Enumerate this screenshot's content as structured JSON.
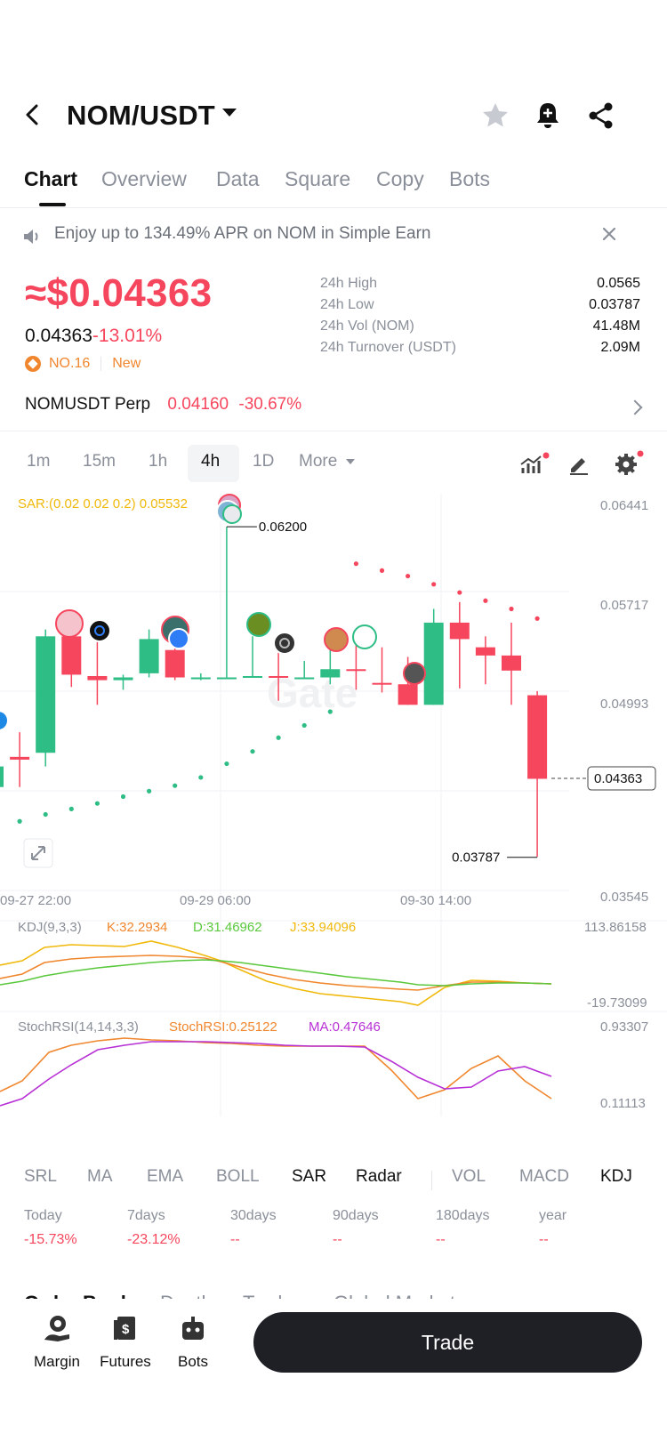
{
  "header": {
    "pair": "NOM/USDT"
  },
  "tabs": [
    {
      "label": "Chart",
      "active": true
    },
    {
      "label": "Overview"
    },
    {
      "label": "Data"
    },
    {
      "label": "Square"
    },
    {
      "label": "Copy"
    },
    {
      "label": "Bots"
    }
  ],
  "banner": {
    "text": "Enjoy up to 134.49% APR on NOM in Simple Earn"
  },
  "price": {
    "main": "≈$0.04363",
    "last": "0.04363",
    "change": "-13.01%",
    "rank": "NO.16",
    "tag": "New"
  },
  "stats": [
    {
      "label": "24h High",
      "value": "0.0565"
    },
    {
      "label": "24h Low",
      "value": "0.03787"
    },
    {
      "label": "24h Vol (NOM)",
      "value": "41.48M"
    },
    {
      "label": "24h Turnover (USDT)",
      "value": "2.09M"
    }
  ],
  "perp": {
    "name": "NOMUSDT Perp",
    "price": "0.04160",
    "change": "-30.67%"
  },
  "intervals": [
    "1m",
    "15m",
    "1h",
    "4h",
    "1D",
    "More"
  ],
  "active_interval": "4h",
  "chart": {
    "sar_label": "SAR:(0.02 0.02 0.2) 0.05532",
    "y_ticks": [
      "0.06441",
      "0.05717",
      "0.04993",
      "0.04363",
      "0.03545"
    ],
    "current_price": "0.04363",
    "high_marker": "0.06200",
    "low_marker": "0.03787",
    "x_ticks": [
      "09-27 22:00",
      "09-29 06:00",
      "09-30 14:00"
    ],
    "kdj": {
      "label": "KDJ(9,3,3)",
      "k": "K:32.2934",
      "d": "D:31.46962",
      "j": "J:33.94096",
      "top": "113.86158",
      "bottom": "-19.73099"
    },
    "stochrsi": {
      "label": "StochRSI(14,14,3,3)",
      "value": "StochRSI:0.25122",
      "ma": "MA:0.47646",
      "top": "0.93307",
      "bottom": "0.11113"
    },
    "colors": {
      "up": "#2ebd85",
      "down": "#f6465d",
      "sar_label": "#f0b90b",
      "k": "#f0862d",
      "d": "#5ac83c",
      "j": "#f0b90b",
      "ma": "#b730d6"
    }
  },
  "chart_data": {
    "type": "candlestick",
    "ylim": [
      0.03545,
      0.06441
    ],
    "candles": [
      {
        "o": 0.043,
        "h": 0.0445,
        "l": 0.0425,
        "c": 0.0445
      },
      {
        "o": 0.0452,
        "h": 0.047,
        "l": 0.043,
        "c": 0.045
      },
      {
        "o": 0.0455,
        "h": 0.0545,
        "l": 0.0445,
        "c": 0.054
      },
      {
        "o": 0.054,
        "h": 0.055,
        "l": 0.0503,
        "c": 0.0512
      },
      {
        "o": 0.0511,
        "h": 0.055,
        "l": 0.049,
        "c": 0.0508
      },
      {
        "o": 0.0508,
        "h": 0.0512,
        "l": 0.0501,
        "c": 0.051
      },
      {
        "o": 0.0513,
        "h": 0.0545,
        "l": 0.051,
        "c": 0.0538
      },
      {
        "o": 0.053,
        "h": 0.0545,
        "l": 0.0508,
        "c": 0.051
      },
      {
        "o": 0.051,
        "h": 0.0513,
        "l": 0.0508,
        "c": 0.051
      },
      {
        "o": 0.051,
        "h": 0.062,
        "l": 0.051,
        "c": 0.051
      },
      {
        "o": 0.051,
        "h": 0.054,
        "l": 0.051,
        "c": 0.0511
      },
      {
        "o": 0.0511,
        "h": 0.054,
        "l": 0.0493,
        "c": 0.051
      },
      {
        "o": 0.051,
        "h": 0.0522,
        "l": 0.0509,
        "c": 0.051
      },
      {
        "o": 0.051,
        "h": 0.0536,
        "l": 0.0505,
        "c": 0.0516
      },
      {
        "o": 0.0516,
        "h": 0.0537,
        "l": 0.0501,
        "c": 0.0515
      },
      {
        "o": 0.0506,
        "h": 0.0532,
        "l": 0.0499,
        "c": 0.0505
      },
      {
        "o": 0.0505,
        "h": 0.0525,
        "l": 0.049,
        "c": 0.049
      },
      {
        "o": 0.049,
        "h": 0.056,
        "l": 0.049,
        "c": 0.055
      },
      {
        "o": 0.055,
        "h": 0.0565,
        "l": 0.0502,
        "c": 0.0538
      },
      {
        "o": 0.0532,
        "h": 0.054,
        "l": 0.0505,
        "c": 0.0526
      },
      {
        "o": 0.0526,
        "h": 0.055,
        "l": 0.049,
        "c": 0.0515
      },
      {
        "o": 0.0497,
        "h": 0.05,
        "l": 0.0379,
        "c": 0.0436
      }
    ],
    "sar": [
      0.04,
      0.0405,
      0.041,
      0.0414,
      0.0418,
      0.0423,
      0.0427,
      0.0431,
      0.0437,
      0.0447,
      0.0456,
      0.0466,
      0.0475,
      0.0485,
      0.0593,
      0.0588,
      0.0584,
      0.0578,
      0.0572,
      0.0566,
      0.056,
      0.0553
    ]
  },
  "indicator_tabs": [
    {
      "label": "SRL"
    },
    {
      "label": "MA"
    },
    {
      "label": "EMA"
    },
    {
      "label": "BOLL"
    },
    {
      "label": "SAR",
      "active": true
    },
    {
      "label": "Radar",
      "active": true
    },
    {
      "label": "VOL"
    },
    {
      "label": "MACD"
    },
    {
      "label": "KDJ",
      "active": true
    }
  ],
  "performance": [
    {
      "label": "Today",
      "value": "-15.73%"
    },
    {
      "label": "7days",
      "value": "-23.12%"
    },
    {
      "label": "30days",
      "value": "--"
    },
    {
      "label": "90days",
      "value": "--"
    },
    {
      "label": "180days",
      "value": "--"
    },
    {
      "label": "year",
      "value": "--"
    }
  ],
  "orderbook_tabs": [
    "Order Book",
    "Depth",
    "Trades",
    "Global Markets"
  ],
  "bottom": {
    "margin": "Margin",
    "futures": "Futures",
    "bots": "Bots",
    "trade": "Trade"
  }
}
